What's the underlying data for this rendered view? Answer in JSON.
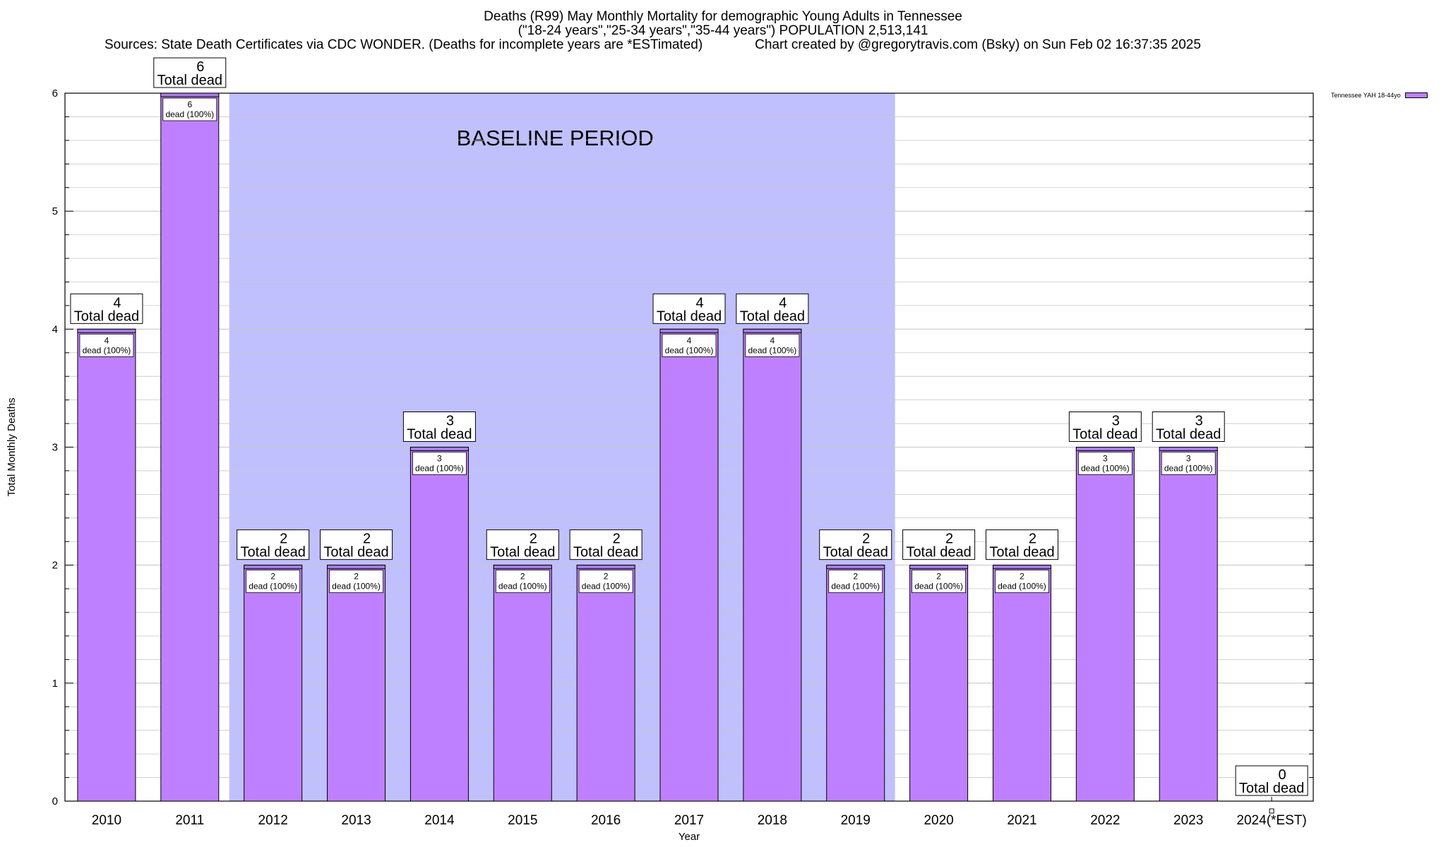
{
  "header": {
    "title": "Deaths (R99) May Monthly Mortality for demographic Young Adults in Tennessee",
    "subtitle": "(\"18-24 years\",\"25-34 years\",\"35-44 years\") POPULATION 2,513,141",
    "sources": "Sources: State Death Certificates via CDC WONDER. (Deaths for incomplete years are *ESTimated)",
    "credit": "Chart created by @gregorytravis.com (Bsky) on Sun Feb 02 16:37:35 2025"
  },
  "colors": {
    "bar": "#bf80ff",
    "bar_top": "#a97ee6",
    "baseline_band": "#c0c0ff",
    "grid": "#c8c8c8"
  },
  "chart_data": {
    "type": "bar",
    "title": "Deaths (R99) May Monthly Mortality for demographic Young Adults in Tennessee",
    "xlabel": "Year",
    "ylabel": "Total Monthly Deaths",
    "ylim": [
      0,
      6
    ],
    "yticks": [
      0,
      1,
      2,
      3,
      4,
      5,
      6
    ],
    "grid": true,
    "categories": [
      "2010",
      "2011",
      "2012",
      "2013",
      "2014",
      "2015",
      "2016",
      "2017",
      "2018",
      "2019",
      "2020",
      "2021",
      "2022",
      "2023",
      "2024(*EST)"
    ],
    "series": [
      {
        "name": "Tennessee YAH 18-44yo",
        "values": [
          4,
          6,
          2,
          2,
          3,
          2,
          2,
          4,
          4,
          2,
          2,
          2,
          3,
          3,
          0
        ]
      }
    ],
    "top_label_suffix": "Total dead",
    "inner_label_suffix": "dead (100%)",
    "band": {
      "label": "BASELINE PERIOD",
      "from": "2012",
      "to": "2019"
    },
    "legend_position": "top-right"
  }
}
